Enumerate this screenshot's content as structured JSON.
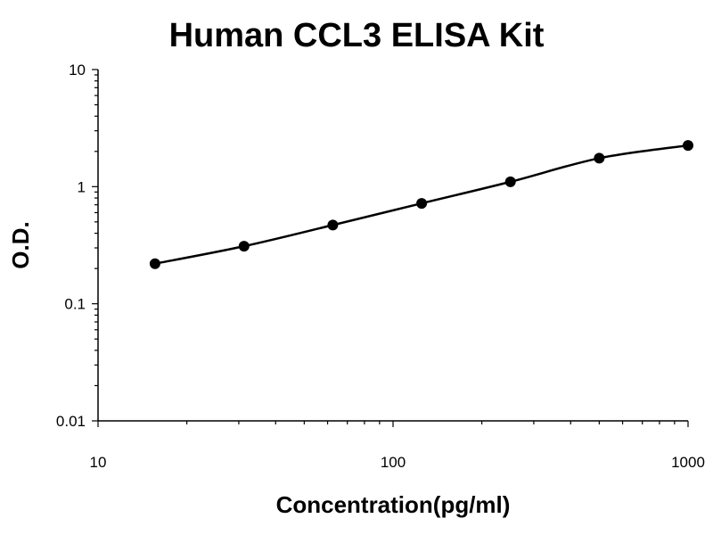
{
  "chart_data": {
    "type": "scatter",
    "title": "Human CCL3 ELISA Kit",
    "xlabel": "Concentration(pg/ml)",
    "ylabel": "O.D.",
    "x_scale": "log",
    "y_scale": "log",
    "xlim": [
      10,
      1000
    ],
    "ylim": [
      0.01,
      10
    ],
    "x_tick_labels": [
      "10",
      "100",
      "1000"
    ],
    "y_tick_labels": [
      "0.01",
      "0.1",
      "1",
      "10"
    ],
    "grid": false,
    "legend": "none",
    "fit_curve": "smooth line through points",
    "series": [
      {
        "x": [
          15.6,
          31.25,
          62.5,
          125,
          250,
          500,
          1000
        ],
        "y": [
          0.22,
          0.31,
          0.47,
          0.72,
          1.1,
          1.75,
          2.25
        ]
      }
    ],
    "colors": {
      "points": "#000000",
      "curve": "#000000",
      "axes": "#000000"
    }
  }
}
